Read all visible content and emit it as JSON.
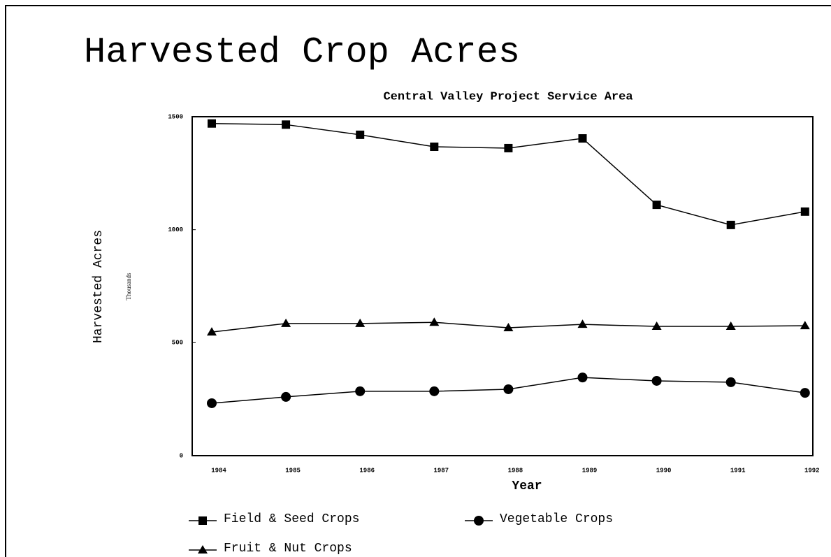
{
  "chart_data": {
    "type": "line",
    "title": "Harvested Crop Acres",
    "subtitle": "Central Valley Project Service Area",
    "y_label": "Harvested Acres",
    "y_unit": "Thousands",
    "x_label": "Year",
    "categories": [
      "1984",
      "1985",
      "1986",
      "1987",
      "1988",
      "1989",
      "1990",
      "1991",
      "1992"
    ],
    "series": [
      {
        "name": "Field & Seed Crops",
        "color": "#000000",
        "marker": "square",
        "values": [
          1470,
          1465,
          1420,
          1367,
          1361,
          1404,
          1110,
          1021,
          1080
        ]
      },
      {
        "name": "Vegetable Crops",
        "color": "#000000",
        "marker": "circle",
        "values": [
          232,
          260,
          285,
          285,
          294,
          346,
          331,
          325,
          278
        ]
      },
      {
        "name": "Fruit & Nut Crops",
        "color": "#000000",
        "marker": "triangle",
        "values": [
          547,
          585,
          585,
          590,
          566,
          581,
          572,
          572,
          575
        ]
      }
    ],
    "ylim": [
      0,
      1500
    ],
    "yticks": [
      0,
      500,
      1000,
      1500
    ],
    "grid": false,
    "legend": "bottom"
  }
}
